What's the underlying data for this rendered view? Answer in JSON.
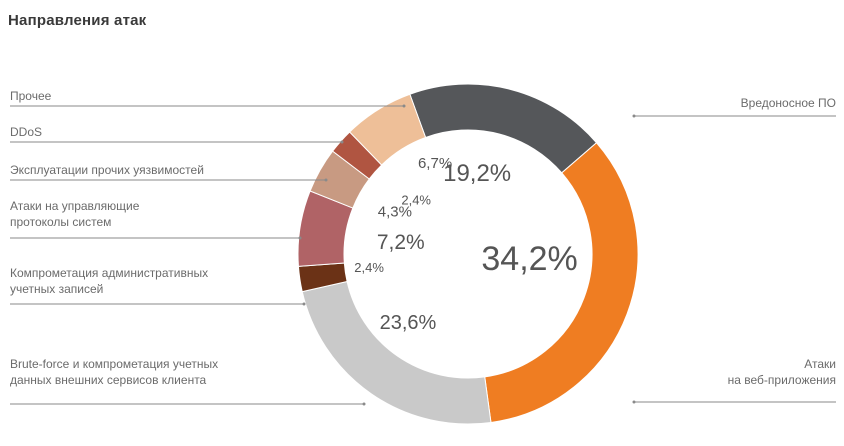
{
  "chart_data": {
    "type": "pie",
    "title": "Направления атак",
    "slices": [
      {
        "label": "Вредоносное ПО",
        "value": 19.2,
        "value_label": "19,2%",
        "color": "#55575a"
      },
      {
        "label": "Атаки\nна веб-приложения",
        "value": 34.2,
        "value_label": "34,2%",
        "color": "#ef7d22"
      },
      {
        "label": "Brute-force и компрометация учетных\nданных внешних сервисов клиента",
        "value": 23.6,
        "value_label": "23,6%",
        "color": "#c9c9c9"
      },
      {
        "label": "Компрометация административных\nучетных записей",
        "value": 2.4,
        "value_label": "2,4%",
        "color": "#6b3216"
      },
      {
        "label": "Атаки на управляющие\nпротоколы систем",
        "value": 7.2,
        "value_label": "7,2%",
        "color": "#b06366"
      },
      {
        "label": "Эксплуатации прочих уязвимостей",
        "value": 4.3,
        "value_label": "4,3%",
        "color": "#c89a82"
      },
      {
        "label": "DDoS",
        "value": 2.4,
        "value_label": "2,4%",
        "color": "#b05541"
      },
      {
        "label": "Прочее",
        "value": 6.7,
        "value_label": "6,7%",
        "color": "#eebf98"
      }
    ]
  }
}
